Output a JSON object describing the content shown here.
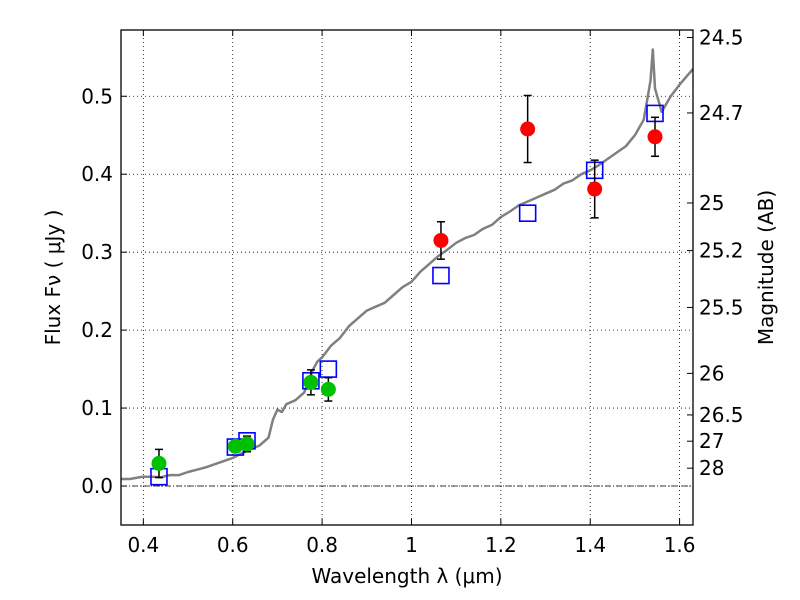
{
  "chart_data": {
    "type": "scatter",
    "xlabel": "Wavelength  λ (μm)",
    "ylabel_left": "Flux  Fν  ( μJy )",
    "ylabel_right": "Magnitude (AB)",
    "xlim": [
      0.35,
      1.63
    ],
    "ylim": [
      -0.05,
      0.585
    ],
    "grid": true,
    "x_ticks": [
      {
        "value": 0.4,
        "label": "0.4"
      },
      {
        "value": 0.6,
        "label": "0.6"
      },
      {
        "value": 0.8,
        "label": "0.8"
      },
      {
        "value": 1.0,
        "label": "1"
      },
      {
        "value": 1.2,
        "label": "1.2"
      },
      {
        "value": 1.4,
        "label": "1.4"
      },
      {
        "value": 1.6,
        "label": "1.6"
      }
    ],
    "y_ticks": [
      {
        "value": 0.0,
        "label": "0.0"
      },
      {
        "value": 0.1,
        "label": "0.1"
      },
      {
        "value": 0.2,
        "label": "0.2"
      },
      {
        "value": 0.3,
        "label": "0.3"
      },
      {
        "value": 0.4,
        "label": "0.4"
      },
      {
        "value": 0.5,
        "label": "0.5"
      }
    ],
    "right_ticks": [
      {
        "flux": 0.5754,
        "label": "24.5"
      },
      {
        "flux": 0.4786,
        "label": "24.7"
      },
      {
        "flux": 0.3631,
        "label": "25"
      },
      {
        "flux": 0.302,
        "label": "25.2"
      },
      {
        "flux": 0.2291,
        "label": "25.5"
      },
      {
        "flux": 0.1445,
        "label": "26"
      },
      {
        "flux": 0.0912,
        "label": "26.5"
      },
      {
        "flux": 0.0575,
        "label": "27"
      },
      {
        "flux": 0.0229,
        "label": "28"
      }
    ],
    "series": [
      {
        "kind": "model_spectrum",
        "color": "#808080",
        "x": [
          0.35,
          0.37,
          0.39,
          0.4,
          0.42,
          0.44,
          0.45,
          0.46,
          0.48,
          0.5,
          0.52,
          0.54,
          0.56,
          0.58,
          0.6,
          0.62,
          0.64,
          0.66,
          0.68,
          0.69,
          0.7,
          0.71,
          0.72,
          0.74,
          0.76,
          0.78,
          0.79,
          0.8,
          0.82,
          0.84,
          0.86,
          0.88,
          0.9,
          0.92,
          0.94,
          0.96,
          0.98,
          1.0,
          1.02,
          1.04,
          1.06,
          1.08,
          1.1,
          1.12,
          1.14,
          1.16,
          1.18,
          1.2,
          1.22,
          1.24,
          1.26,
          1.28,
          1.3,
          1.32,
          1.34,
          1.36,
          1.38,
          1.4,
          1.42,
          1.44,
          1.46,
          1.48,
          1.5,
          1.52,
          1.535,
          1.54,
          1.545,
          1.56,
          1.58,
          1.6,
          1.63
        ],
        "y": [
          0.009,
          0.009,
          0.011,
          0.012,
          0.012,
          0.011,
          0.013,
          0.014,
          0.014,
          0.018,
          0.021,
          0.024,
          0.028,
          0.032,
          0.036,
          0.042,
          0.047,
          0.052,
          0.062,
          0.085,
          0.098,
          0.095,
          0.105,
          0.11,
          0.12,
          0.15,
          0.16,
          0.165,
          0.18,
          0.19,
          0.205,
          0.215,
          0.225,
          0.23,
          0.235,
          0.245,
          0.255,
          0.262,
          0.275,
          0.285,
          0.295,
          0.303,
          0.312,
          0.318,
          0.322,
          0.33,
          0.335,
          0.345,
          0.352,
          0.36,
          0.365,
          0.37,
          0.375,
          0.38,
          0.388,
          0.392,
          0.4,
          0.405,
          0.412,
          0.42,
          0.428,
          0.436,
          0.45,
          0.47,
          0.52,
          0.56,
          0.51,
          0.48,
          0.5,
          0.515,
          0.535
        ]
      },
      {
        "kind": "model_band_fluxes",
        "marker": "open-square",
        "color": "#0000ff",
        "x": [
          0.435,
          0.606,
          0.632,
          0.775,
          0.814,
          1.066,
          1.26,
          1.41,
          1.545
        ],
        "y": [
          0.012,
          0.05,
          0.058,
          0.135,
          0.15,
          0.27,
          0.35,
          0.405,
          0.478
        ]
      },
      {
        "kind": "observed_optical",
        "marker": "filled-circle",
        "color": "#00c000",
        "x": [
          0.435,
          0.606,
          0.632,
          0.775,
          0.814
        ],
        "y": [
          0.029,
          0.051,
          0.054,
          0.133,
          0.124
        ],
        "yerr": [
          0.018,
          0.007,
          0.01,
          0.016,
          0.015
        ]
      },
      {
        "kind": "observed_nir",
        "marker": "filled-circle",
        "color": "#ff0000",
        "x": [
          1.066,
          1.26,
          1.41,
          1.545
        ],
        "y": [
          0.315,
          0.458,
          0.381,
          0.448
        ],
        "yerr": [
          0.024,
          0.043,
          0.037,
          0.025
        ]
      }
    ]
  }
}
